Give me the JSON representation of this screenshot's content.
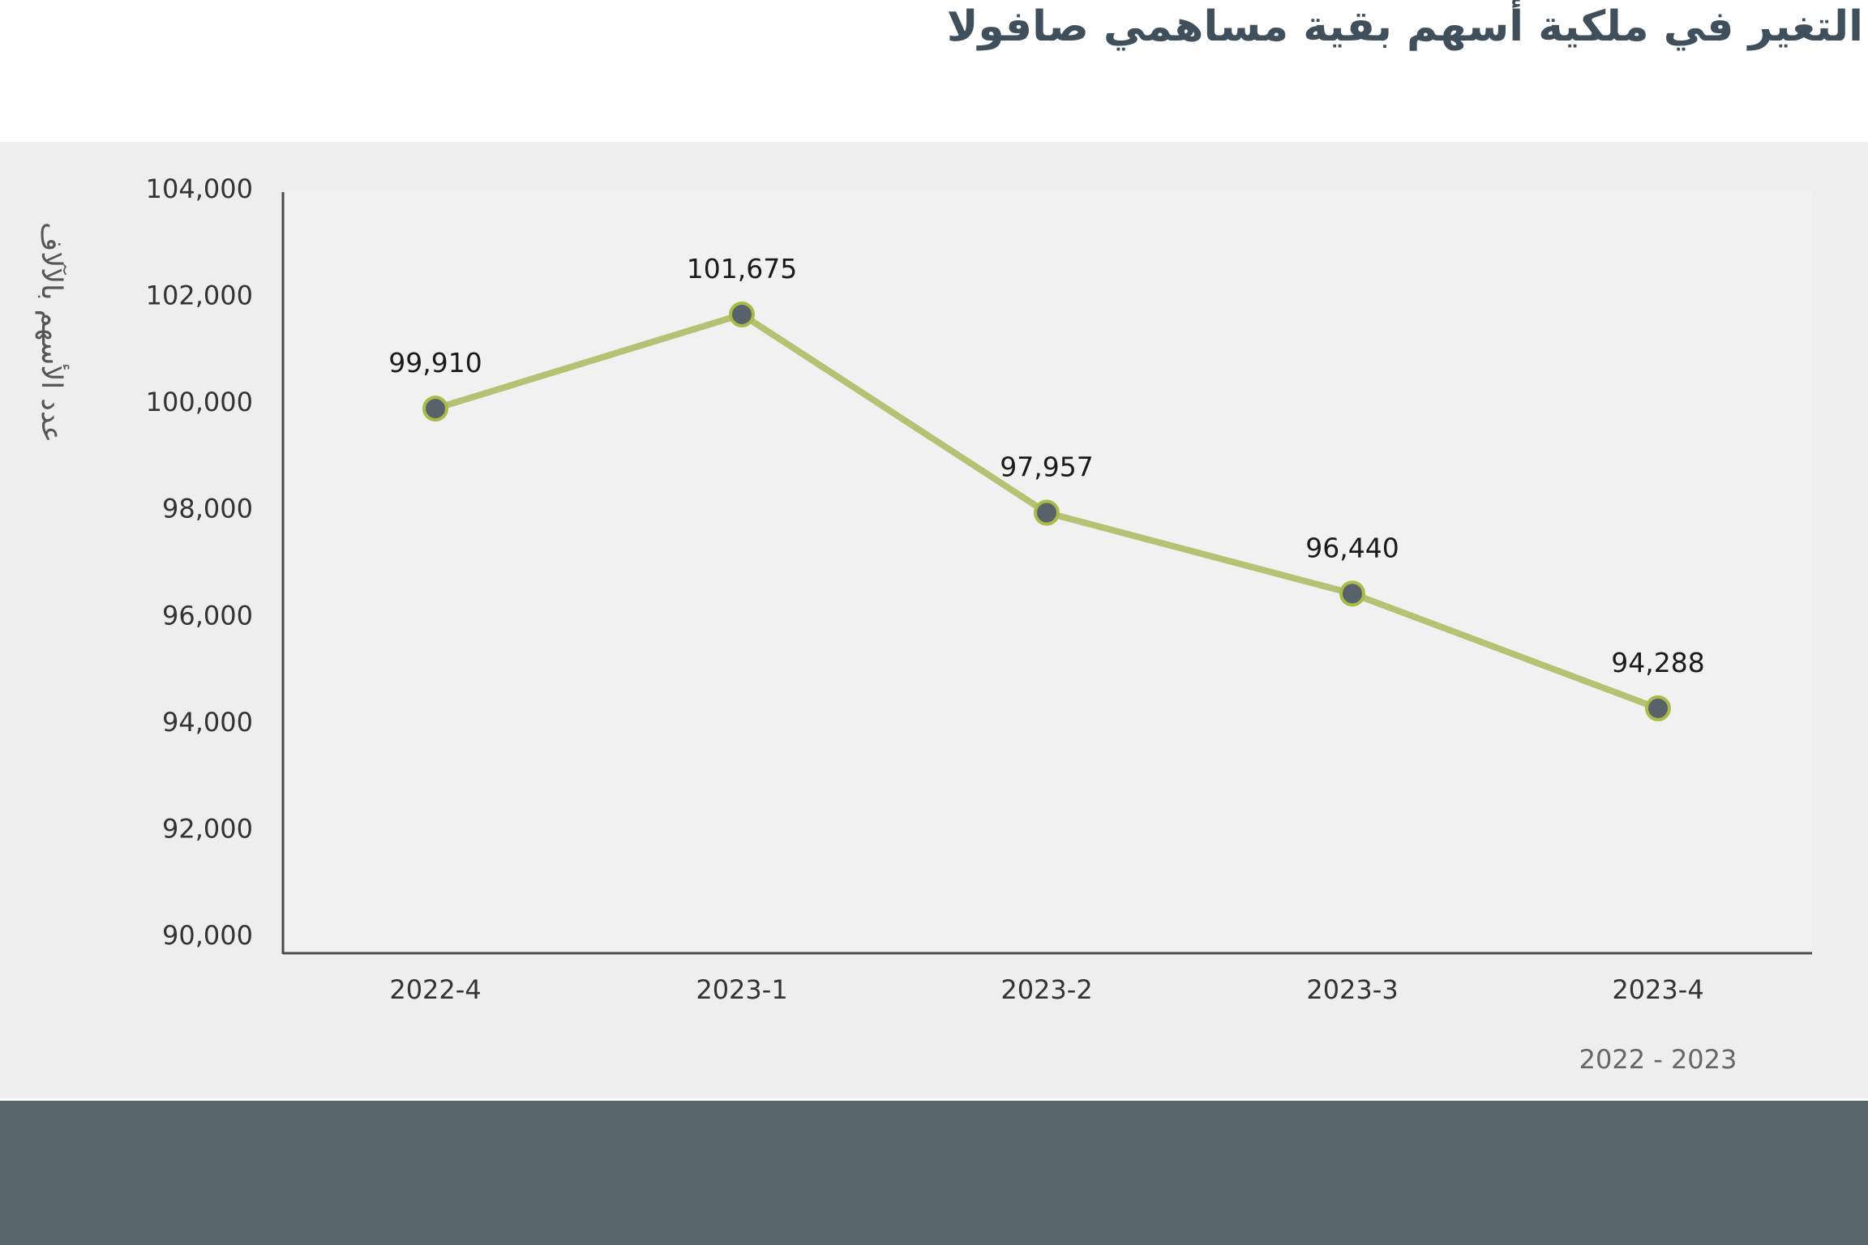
{
  "title": "التغير في ملكية أسهم بقية مساهمي صافولا",
  "chart_data": {
    "type": "line",
    "title": "التغير في ملكية أسهم بقية مساهمي صافولا",
    "xlabel": "2022 - 2023",
    "ylabel": "عدد الأسهم بالآلاف",
    "categories": [
      "2022-4",
      "2023-1",
      "2023-2",
      "2023-3",
      "2023-4"
    ],
    "series": [
      {
        "name": "عدد الأسهم بالآلاف",
        "values": [
          99910,
          101675,
          97957,
          96440,
          94288
        ]
      }
    ],
    "data_labels": [
      "99,910",
      "101,675",
      "97,957",
      "96,440",
      "94,288"
    ],
    "ylim": [
      90000,
      104000
    ],
    "yticks": [
      90000,
      92000,
      94000,
      96000,
      98000,
      100000,
      102000,
      104000
    ],
    "ytick_labels": [
      "90,000",
      "92,000",
      "94,000",
      "96,000",
      "98,000",
      "100,000",
      "102,000",
      "104,000"
    ],
    "grid": false,
    "colors": {
      "line": "#b5c173",
      "marker_fill": "#58626b",
      "marker_stroke": "#a9bc4a",
      "panel_bg": "#eeeeee",
      "plot_bg": "#f1f1f1",
      "title": "#3f4f5c",
      "footer": "#5a666e"
    }
  }
}
